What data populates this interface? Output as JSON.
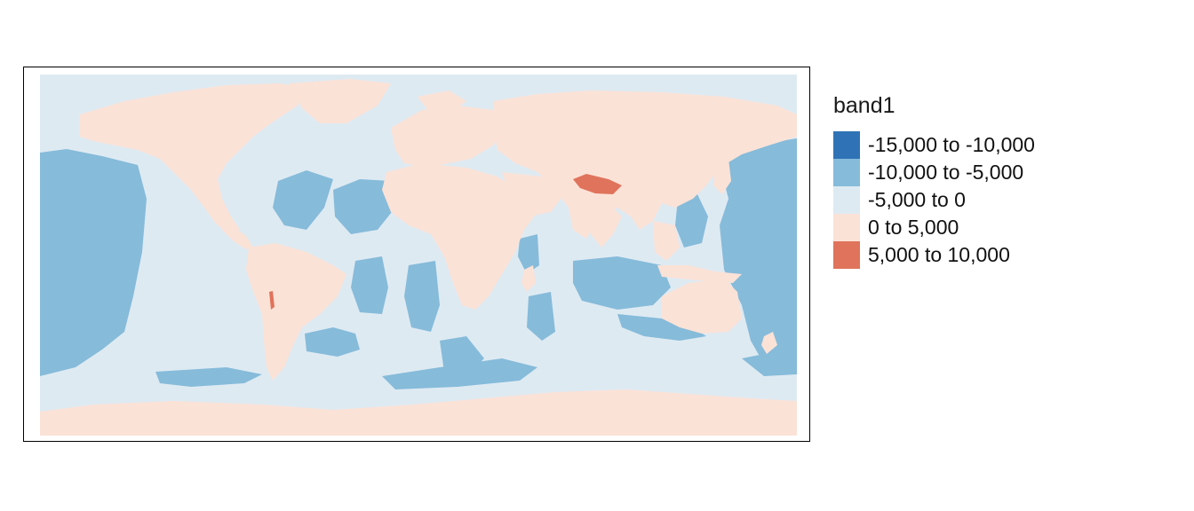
{
  "legend": {
    "title": "band1",
    "items": [
      {
        "label": "-15,000 to -10,000",
        "color": "#2f73b6"
      },
      {
        "label": "-10,000 to -5,000",
        "color": "#86bbda"
      },
      {
        "label": "-5,000 to 0",
        "color": "#deeaf2"
      },
      {
        "label": "0 to 5,000",
        "color": "#fbe2d7"
      },
      {
        "label": "5,000 to 10,000",
        "color": "#e0735b"
      }
    ]
  },
  "map": {
    "ocean_color": "#deeaf2",
    "land_color": "#fbe2d7",
    "deep_color": "#86bbda",
    "high_color": "#e0735b"
  }
}
